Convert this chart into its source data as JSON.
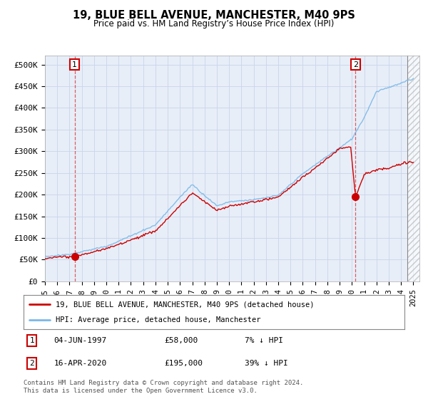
{
  "title": "19, BLUE BELL AVENUE, MANCHESTER, M40 9PS",
  "subtitle": "Price paid vs. HM Land Registry’s House Price Index (HPI)",
  "ylabel_ticks": [
    "£0",
    "£50K",
    "£100K",
    "£150K",
    "£200K",
    "£250K",
    "£300K",
    "£350K",
    "£400K",
    "£450K",
    "£500K"
  ],
  "ytick_values": [
    0,
    50000,
    100000,
    150000,
    200000,
    250000,
    300000,
    350000,
    400000,
    450000,
    500000
  ],
  "xlim": [
    1995.0,
    2025.5
  ],
  "ylim": [
    0,
    520000
  ],
  "xtick_years": [
    1995,
    1996,
    1997,
    1998,
    1999,
    2000,
    2001,
    2002,
    2003,
    2004,
    2005,
    2006,
    2007,
    2008,
    2009,
    2010,
    2011,
    2012,
    2013,
    2014,
    2015,
    2016,
    2017,
    2018,
    2019,
    2020,
    2021,
    2022,
    2023,
    2024,
    2025
  ],
  "hpi_color": "#7ab8e8",
  "price_color": "#cc0000",
  "bg_color": "#e8eef8",
  "grid_color": "#c8d4e8",
  "point1_year": 1997.42,
  "point1_price": 58000,
  "point2_year": 2020.29,
  "point2_price": 195000,
  "hatch_start": 2024.5,
  "legend_line1": "19, BLUE BELL AVENUE, MANCHESTER, M40 9PS (detached house)",
  "legend_line2": "HPI: Average price, detached house, Manchester",
  "note1_label": "1",
  "note1_date": "04-JUN-1997",
  "note1_price": "£58,000",
  "note1_hpi": "7% ↓ HPI",
  "note2_label": "2",
  "note2_date": "16-APR-2020",
  "note2_price": "£195,000",
  "note2_hpi": "39% ↓ HPI",
  "footer": "Contains HM Land Registry data © Crown copyright and database right 2024.\nThis data is licensed under the Open Government Licence v3.0."
}
